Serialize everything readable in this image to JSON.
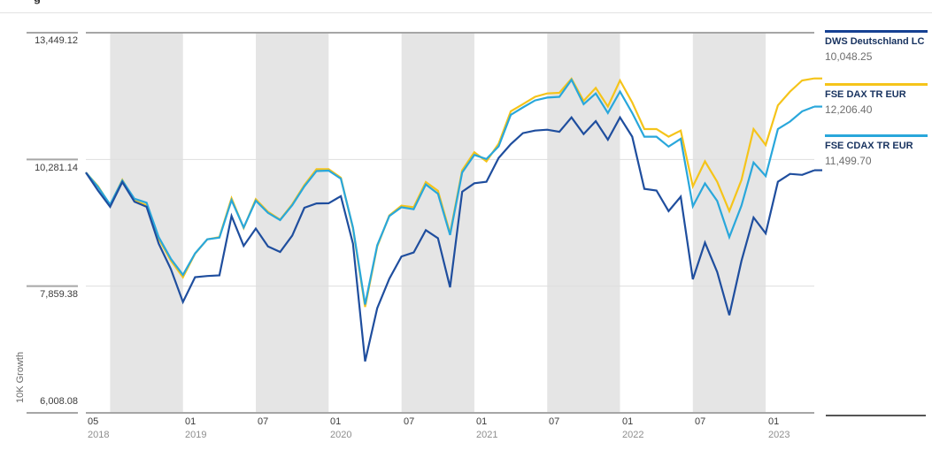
{
  "page": {
    "title_fragment": "g"
  },
  "y_axis": {
    "title": "10K Growth",
    "ticks": [
      "13,449.12",
      "10,281.14",
      "7,859.38",
      "6,008.08"
    ]
  },
  "x_axis": {
    "ticks": [
      {
        "m": "05",
        "y": "2018"
      },
      {
        "m": "01",
        "y": "2019"
      },
      {
        "m": "07",
        "y": ""
      },
      {
        "m": "01",
        "y": "2020"
      },
      {
        "m": "07",
        "y": ""
      },
      {
        "m": "01",
        "y": "2021"
      },
      {
        "m": "07",
        "y": ""
      },
      {
        "m": "01",
        "y": "2022"
      },
      {
        "m": "07",
        "y": ""
      },
      {
        "m": "01",
        "y": "2023"
      }
    ]
  },
  "legend": [
    {
      "label": "DWS Deutschland LC",
      "value": "10,048.25",
      "color": "#164193"
    },
    {
      "label": "FSE DAX TR EUR",
      "value": "12,206.40",
      "color": "#F5C41A"
    },
    {
      "label": "FSE CDAX TR EUR",
      "value": "11,499.70",
      "color": "#29A7DB"
    }
  ],
  "chart_data": {
    "type": "line",
    "title": "10K Growth",
    "y_scale": "log",
    "ylim": [
      6008.08,
      13449.12
    ],
    "y_ticks": [
      13449.12,
      10281.14,
      7859.38,
      6008.08
    ],
    "grid_y_tick_indexes": [
      1,
      2
    ],
    "x": [
      "2018-05",
      "2018-06",
      "2018-07",
      "2018-08",
      "2018-09",
      "2018-10",
      "2018-11",
      "2018-12",
      "2019-01",
      "2019-02",
      "2019-03",
      "2019-04",
      "2019-05",
      "2019-06",
      "2019-07",
      "2019-08",
      "2019-09",
      "2019-10",
      "2019-11",
      "2019-12",
      "2020-01",
      "2020-02",
      "2020-03",
      "2020-04",
      "2020-05",
      "2020-06",
      "2020-07",
      "2020-08",
      "2020-09",
      "2020-10",
      "2020-11",
      "2020-12",
      "2021-01",
      "2021-02",
      "2021-03",
      "2021-04",
      "2021-05",
      "2021-06",
      "2021-07",
      "2021-08",
      "2021-09",
      "2021-10",
      "2021-11",
      "2021-12",
      "2022-01",
      "2022-02",
      "2022-03",
      "2022-04",
      "2022-05",
      "2022-06",
      "2022-07",
      "2022-08",
      "2022-09",
      "2022-10",
      "2022-11",
      "2022-12",
      "2023-01",
      "2023-02",
      "2023-03",
      "2023-04",
      "2023-05"
    ],
    "x_tick_label_indexes": [
      0,
      8,
      14,
      20,
      26,
      32,
      38,
      44,
      50,
      56
    ],
    "shaded_bands": {
      "note": "gray background bands covering July-January of each year",
      "color": "#E5E5E5",
      "index_ranges": [
        [
          2,
          8
        ],
        [
          14,
          20
        ],
        [
          26,
          32
        ],
        [
          38,
          44
        ],
        [
          50,
          56
        ]
      ]
    },
    "series": [
      {
        "name": "DWS Deutschland LC",
        "color": "#1F4E9E",
        "end_value": 10048.25,
        "values": [
          10000,
          9625,
          9300,
          9800,
          9400,
          9300,
          8600,
          8150,
          7600,
          8010,
          8030,
          8040,
          9120,
          8560,
          8880,
          8550,
          8450,
          8750,
          9280,
          9365,
          9370,
          9510,
          8600,
          6700,
          7500,
          7985,
          8370,
          8440,
          8850,
          8700,
          7840,
          9600,
          9775,
          9805,
          10315,
          10620,
          10870,
          10930,
          10950,
          10900,
          11240,
          10850,
          11150,
          10720,
          11240,
          10790,
          9660,
          9625,
          9215,
          9500,
          7975,
          8620,
          8100,
          7390,
          8290,
          9090,
          8790,
          9805,
          9970,
          9950,
          10048.25
        ]
      },
      {
        "name": "FSE DAX TR EUR",
        "color": "#F5C41A",
        "end_value": 12206.4,
        "values": [
          10000,
          9715,
          9330,
          9845,
          9420,
          9330,
          8690,
          8300,
          8010,
          8420,
          8680,
          8720,
          9470,
          8890,
          9450,
          9200,
          9050,
          9350,
          9740,
          10070,
          10070,
          9890,
          8880,
          7520,
          8550,
          9130,
          9320,
          9290,
          9800,
          9620,
          8790,
          10050,
          10440,
          10240,
          10630,
          11385,
          11560,
          11740,
          11825,
          11840,
          12200,
          11640,
          11965,
          11500,
          12155,
          11600,
          10965,
          10965,
          10790,
          10930,
          9710,
          10240,
          9805,
          9215,
          9840,
          10965,
          10600,
          11530,
          11870,
          12155,
          12206.4
        ]
      },
      {
        "name": "FSE CDAX TR EUR",
        "color": "#29A7DB",
        "end_value": 11499.7,
        "values": [
          10000,
          9700,
          9345,
          9830,
          9460,
          9380,
          8720,
          8330,
          8050,
          8425,
          8680,
          8710,
          9430,
          8900,
          9420,
          9180,
          9040,
          9330,
          9710,
          10030,
          10040,
          9870,
          8900,
          7560,
          8570,
          9120,
          9290,
          9250,
          9750,
          9560,
          8760,
          10000,
          10380,
          10290,
          10570,
          11300,
          11480,
          11650,
          11720,
          11740,
          12170,
          11560,
          11825,
          11345,
          11870,
          11345,
          10790,
          10790,
          10565,
          10740,
          9310,
          9770,
          9415,
          8720,
          9320,
          10215,
          9925,
          10965,
          11140,
          11385,
          11499.7
        ]
      }
    ],
    "colors": {
      "band": "#E5E5E5",
      "gridline": "#DEDEDE",
      "axis": "#A6A6A6",
      "tick_label": "#3B3B3B",
      "year_label": "#8E8E8E",
      "legend_divider": "#555555"
    },
    "legend_position": "right"
  }
}
